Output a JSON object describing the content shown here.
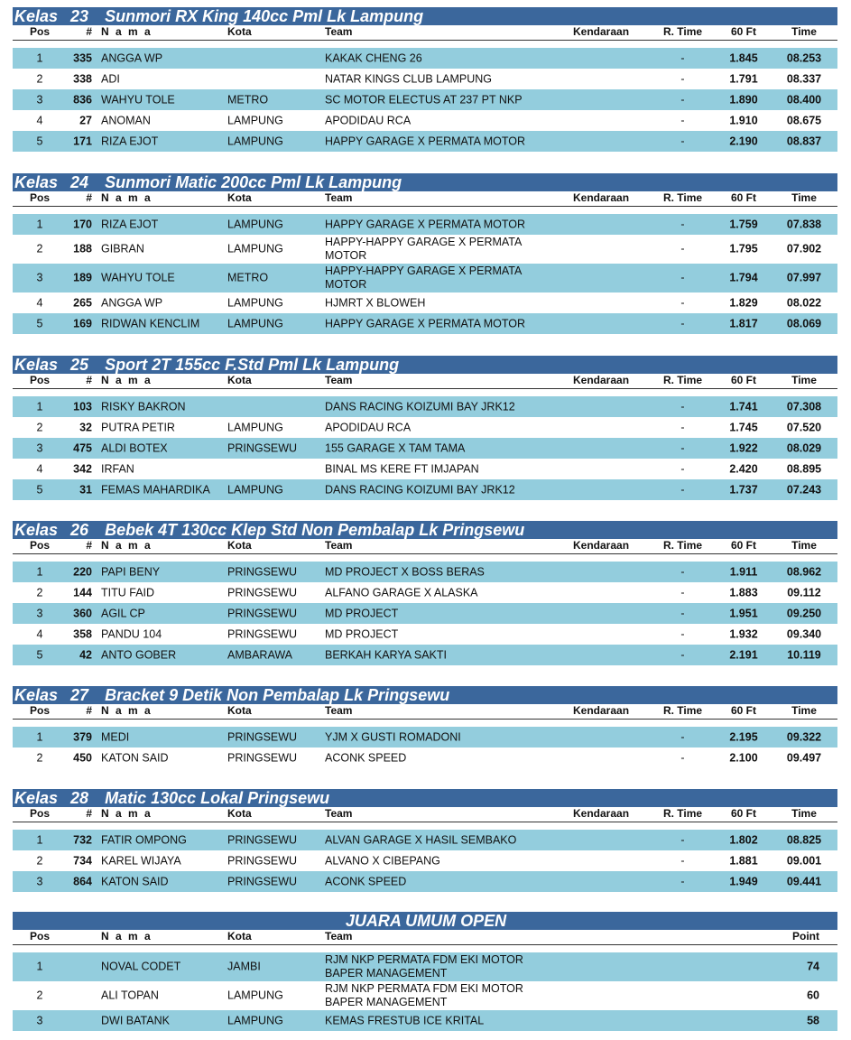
{
  "headers": {
    "pos": "Pos",
    "num": "#",
    "nama": "N a m a",
    "kota": "Kota",
    "team": "Team",
    "kendaraan": "Kendaraan",
    "rtime": "R. Time",
    "ft": "60 Ft",
    "time": "Time",
    "point": "Point"
  },
  "colors": {
    "title_bar": "#3b679c",
    "band": "#93cddd"
  },
  "classes": [
    {
      "kelas": "Kelas",
      "no": "23",
      "name": "Sunmori RX King 140cc Pml Lk Lampung",
      "rows": [
        [
          "1",
          "335",
          "ANGGA WP",
          "",
          "KAKAK CHENG 26",
          "-",
          "1.845",
          "08.253"
        ],
        [
          "2",
          "338",
          "ADI",
          "",
          "NATAR KINGS CLUB LAMPUNG",
          "-",
          "1.791",
          "08.337"
        ],
        [
          "3",
          "836",
          "WAHYU TOLE",
          "METRO",
          "SC MOTOR ELECTUS AT 237 PT NKP",
          "-",
          "1.890",
          "08.400"
        ],
        [
          "4",
          "27",
          "ANOMAN",
          "LAMPUNG",
          "APODIDAU RCA",
          "-",
          "1.910",
          "08.675"
        ],
        [
          "5",
          "171",
          "RIZA EJOT",
          "LAMPUNG",
          "HAPPY GARAGE X PERMATA MOTOR",
          "-",
          "2.190",
          "08.837"
        ]
      ]
    },
    {
      "kelas": "Kelas",
      "no": "24",
      "name": "Sunmori Matic 200cc Pml Lk Lampung",
      "rows": [
        [
          "1",
          "170",
          "RIZA EJOT",
          "LAMPUNG",
          "HAPPY GARAGE X PERMATA MOTOR",
          "-",
          "1.759",
          "07.838"
        ],
        [
          "2",
          "188",
          "GIBRAN",
          "LAMPUNG",
          "HAPPY-HAPPY GARAGE X PERMATA MOTOR",
          "-",
          "1.795",
          "07.902"
        ],
        [
          "3",
          "189",
          "WAHYU TOLE",
          "METRO",
          "HAPPY-HAPPY GARAGE X PERMATA MOTOR",
          "-",
          "1.794",
          "07.997"
        ],
        [
          "4",
          "265",
          "ANGGA WP",
          "LAMPUNG",
          "HJMRT X BLOWEH",
          "-",
          "1.829",
          "08.022"
        ],
        [
          "5",
          "169",
          "RIDWAN KENCLIM",
          "LAMPUNG",
          "HAPPY GARAGE X PERMATA MOTOR",
          "-",
          "1.817",
          "08.069"
        ]
      ]
    },
    {
      "kelas": "Kelas",
      "no": "25",
      "name": "Sport 2T 155cc F.Std Pml Lk Lampung",
      "rows": [
        [
          "1",
          "103",
          "RISKY BAKRON",
          "",
          "DANS RACING KOIZUMI BAY JRK12",
          "-",
          "1.741",
          "07.308"
        ],
        [
          "2",
          "32",
          "PUTRA PETIR",
          "LAMPUNG",
          "APODIDAU RCA",
          "-",
          "1.745",
          "07.520"
        ],
        [
          "3",
          "475",
          "ALDI BOTEX",
          "PRINGSEWU",
          "155 GARAGE X TAM TAMA",
          "-",
          "1.922",
          "08.029"
        ],
        [
          "4",
          "342",
          "IRFAN",
          "",
          "BINAL MS KERE FT IMJAPAN",
          "-",
          "2.420",
          "08.895"
        ],
        [
          "5",
          "31",
          "FEMAS MAHARDIKA",
          "LAMPUNG",
          "DANS RACING KOIZUMI BAY JRK12",
          "-",
          "1.737",
          "07.243"
        ]
      ]
    },
    {
      "kelas": "Kelas",
      "no": "26",
      "name": "Bebek 4T 130cc Klep Std Non Pembalap Lk Pringsewu",
      "rows": [
        [
          "1",
          "220",
          "PAPI BENY",
          "PRINGSEWU",
          "MD PROJECT X BOSS BERAS",
          "-",
          "1.911",
          "08.962"
        ],
        [
          "2",
          "144",
          "TITU FAID",
          "PRINGSEWU",
          "ALFANO GARAGE X ALASKA",
          "-",
          "1.883",
          "09.112"
        ],
        [
          "3",
          "360",
          "AGIL CP",
          "PRINGSEWU",
          "MD PROJECT",
          "-",
          "1.951",
          "09.250"
        ],
        [
          "4",
          "358",
          "PANDU 104",
          "PRINGSEWU",
          "MD PROJECT",
          "-",
          "1.932",
          "09.340"
        ],
        [
          "5",
          "42",
          "ANTO GOBER",
          "AMBARAWA",
          "BERKAH KARYA SAKTI",
          "-",
          "2.191",
          "10.119"
        ]
      ]
    },
    {
      "kelas": "Kelas",
      "no": "27",
      "name": "Bracket 9 Detik Non Pembalap Lk Pringsewu",
      "rows": [
        [
          "1",
          "379",
          "MEDI",
          "PRINGSEWU",
          "YJM X GUSTI ROMADONI",
          "-",
          "2.195",
          "09.322"
        ],
        [
          "2",
          "450",
          "KATON SAID",
          "PRINGSEWU",
          "ACONK SPEED",
          "-",
          "2.100",
          "09.497"
        ]
      ]
    },
    {
      "kelas": "Kelas",
      "no": "28",
      "name": "Matic 130cc Lokal Pringsewu",
      "rows": [
        [
          "1",
          "732",
          "FATIR OMPONG",
          "PRINGSEWU",
          "ALVAN GARAGE X HASIL SEMBAKO",
          "-",
          "1.802",
          "08.825"
        ],
        [
          "2",
          "734",
          "KAREL WIJAYA",
          "PRINGSEWU",
          "ALVANO X CIBEPANG",
          "-",
          "1.881",
          "09.001"
        ],
        [
          "3",
          "864",
          "KATON SAID",
          "PRINGSEWU",
          "ACONK SPEED",
          "-",
          "1.949",
          "09.441"
        ]
      ]
    }
  ],
  "juara": {
    "title": "JUARA UMUM OPEN",
    "rows": [
      [
        "1",
        "NOVAL CODET",
        "JAMBI",
        "RJM NKP PERMATA FDM EKI MOTOR BAPER MANAGEMENT",
        "74"
      ],
      [
        "2",
        "ALI TOPAN",
        "LAMPUNG",
        "RJM NKP PERMATA FDM EKI MOTOR BAPER MANAGEMENT",
        "60"
      ],
      [
        "3",
        "DWI BATANK",
        "LAMPUNG",
        "KEMAS FRESTUB ICE KRITAL",
        "58"
      ]
    ]
  }
}
